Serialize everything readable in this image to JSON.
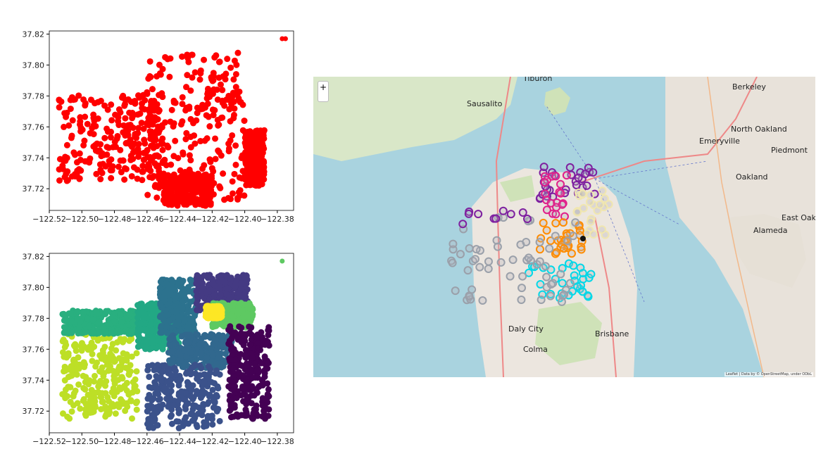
{
  "chart_data": [
    {
      "type": "scatter",
      "title": "",
      "xlabel": "",
      "ylabel": "",
      "xlim": [
        -122.52,
        -122.37
      ],
      "ylim": [
        37.706,
        37.822
      ],
      "xticks": [
        "−122.52",
        "−122.50",
        "−122.48",
        "−122.46",
        "−122.44",
        "−122.42",
        "−122.40",
        "−122.38"
      ],
      "yticks": [
        "37.72",
        "37.74",
        "37.76",
        "37.78",
        "37.80",
        "37.82"
      ],
      "grid": false,
      "series": [
        {
          "color": "#ff0000",
          "regions": [
            {
              "x": [
                -122.514,
                -122.45
              ],
              "y": [
                37.725,
                37.782
              ]
            },
            {
              "x": [
                -122.46,
                -122.4
              ],
              "y": [
                37.712,
                37.808
              ]
            },
            {
              "x": [
                -122.4,
                -122.388
              ],
              "y": [
                37.722,
                37.758
              ]
            },
            {
              "x": [
                -122.45,
                -122.42
              ],
              "y": [
                37.709,
                37.73
              ]
            }
          ],
          "extra_points": [
            [
              -122.377,
              37.817
            ],
            [
              -122.375,
              37.817
            ]
          ]
        }
      ]
    },
    {
      "type": "scatter",
      "title": "",
      "xlabel": "",
      "ylabel": "",
      "xlim": [
        -122.52,
        -122.37
      ],
      "ylim": [
        37.706,
        37.822
      ],
      "xticks": [
        "−122.52",
        "−122.50",
        "−122.48",
        "−122.46",
        "−122.44",
        "−122.42",
        "−122.40",
        "−122.38"
      ],
      "yticks": [
        "37.72",
        "37.74",
        "37.76",
        "37.78",
        "37.80",
        "37.82"
      ],
      "grid": false,
      "series": [
        {
          "cluster": 1,
          "color": "#bddf26",
          "regions": [
            {
              "x": [
                -122.512,
                -122.466
              ],
              "y": [
                37.715,
                37.77
              ]
            }
          ]
        },
        {
          "cluster": 2,
          "color": "#29af7f",
          "regions": [
            {
              "x": [
                -122.512,
                -122.466
              ],
              "y": [
                37.77,
                37.785
              ]
            }
          ]
        },
        {
          "cluster": 3,
          "color": "#22a884",
          "regions": [
            {
              "x": [
                -122.466,
                -122.44
              ],
              "y": [
                37.76,
                37.79
              ]
            }
          ]
        },
        {
          "cluster": 4,
          "color": "#2c728e",
          "regions": [
            {
              "x": [
                -122.452,
                -122.43
              ],
              "y": [
                37.77,
                37.805
              ]
            }
          ]
        },
        {
          "cluster": 5,
          "color": "#443a83",
          "regions": [
            {
              "x": [
                -122.43,
                -122.398
              ],
              "y": [
                37.785,
                37.808
              ]
            }
          ]
        },
        {
          "cluster": 6,
          "color": "#5ec962",
          "regions": [
            {
              "x": [
                -122.42,
                -122.395
              ],
              "y": [
                37.774,
                37.79
              ]
            }
          ]
        },
        {
          "cluster": 7,
          "color": "#fde725",
          "regions": [
            {
              "x": [
                -122.424,
                -122.414
              ],
              "y": [
                37.78,
                37.788
              ]
            }
          ]
        },
        {
          "cluster": 8,
          "color": "#31688e",
          "regions": [
            {
              "x": [
                -122.447,
                -122.408
              ],
              "y": [
                37.748,
                37.77
              ]
            }
          ]
        },
        {
          "cluster": 9,
          "color": "#3b528b",
          "regions": [
            {
              "x": [
                -122.46,
                -122.415
              ],
              "y": [
                37.709,
                37.75
              ]
            }
          ]
        },
        {
          "cluster": 10,
          "color": "#440154",
          "regions": [
            {
              "x": [
                -122.41,
                -122.385
              ],
              "y": [
                37.715,
                37.775
              ]
            }
          ]
        }
      ],
      "extra_points": [
        [
          -122.377,
          37.817
        ]
      ]
    }
  ],
  "map": {
    "zoom_in_label": "+",
    "attribution": "Leaflet | Data by © OpenStreetMap, under ODbL",
    "place_labels": [
      "Tiburon",
      "Berkeley",
      "Sausalito",
      "Emeryville",
      "Piedmont",
      "Oakland",
      "Alameda",
      "Daly City",
      "Brisbane",
      "Colma",
      "North Oakland",
      "East Oakland"
    ],
    "marker_colors": [
      "#7e1fa0",
      "#e0208a",
      "#f0e6b0",
      "#ff8c00",
      "#00d8e8",
      "#9aa0aa",
      "#111111"
    ]
  }
}
